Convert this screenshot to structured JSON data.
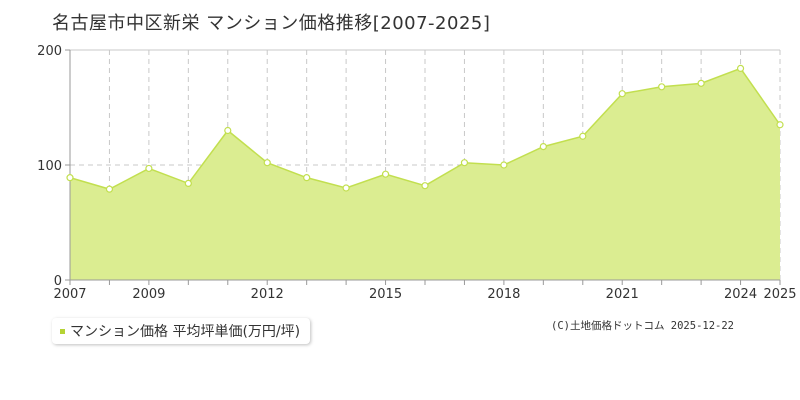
{
  "title": "名古屋市中区新栄 マンション価格推移[2007-2025]",
  "legend": {
    "label": "マンション価格 平均坪単価(万円/坪)"
  },
  "copyright": "(C)土地価格ドットコム 2025-12-22",
  "colors": {
    "fill": "#dbed91",
    "line": "#c2df4f",
    "marker_fill": "#ffffff",
    "grid": "#c8c8c8",
    "legend_marker": "#b5d334"
  },
  "chart_data": {
    "type": "area",
    "title": "名古屋市中区新栄 マンション価格推移[2007-2025]",
    "xlabel": "",
    "ylabel": "",
    "x": [
      2007,
      2008,
      2009,
      2010,
      2011,
      2012,
      2013,
      2014,
      2015,
      2016,
      2017,
      2018,
      2019,
      2020,
      2021,
      2022,
      2023,
      2024,
      2025
    ],
    "series": [
      {
        "name": "マンション価格 平均坪単価(万円/坪)",
        "values": [
          89,
          79,
          97,
          84,
          130,
          102,
          89,
          80,
          92,
          82,
          102,
          100,
          116,
          125,
          162,
          168,
          171,
          184,
          135
        ]
      }
    ],
    "xlim": [
      2007,
      2025
    ],
    "ylim": [
      0,
      200
    ],
    "x_tick_labels": [
      "2007",
      "2009",
      "2012",
      "2015",
      "2018",
      "2021",
      "2024",
      "2025"
    ],
    "y_tick_labels": [
      "0",
      "100",
      "200"
    ],
    "y_ticks": [
      0,
      100,
      200
    ],
    "grid": true,
    "legend_position": "bottom-left"
  }
}
